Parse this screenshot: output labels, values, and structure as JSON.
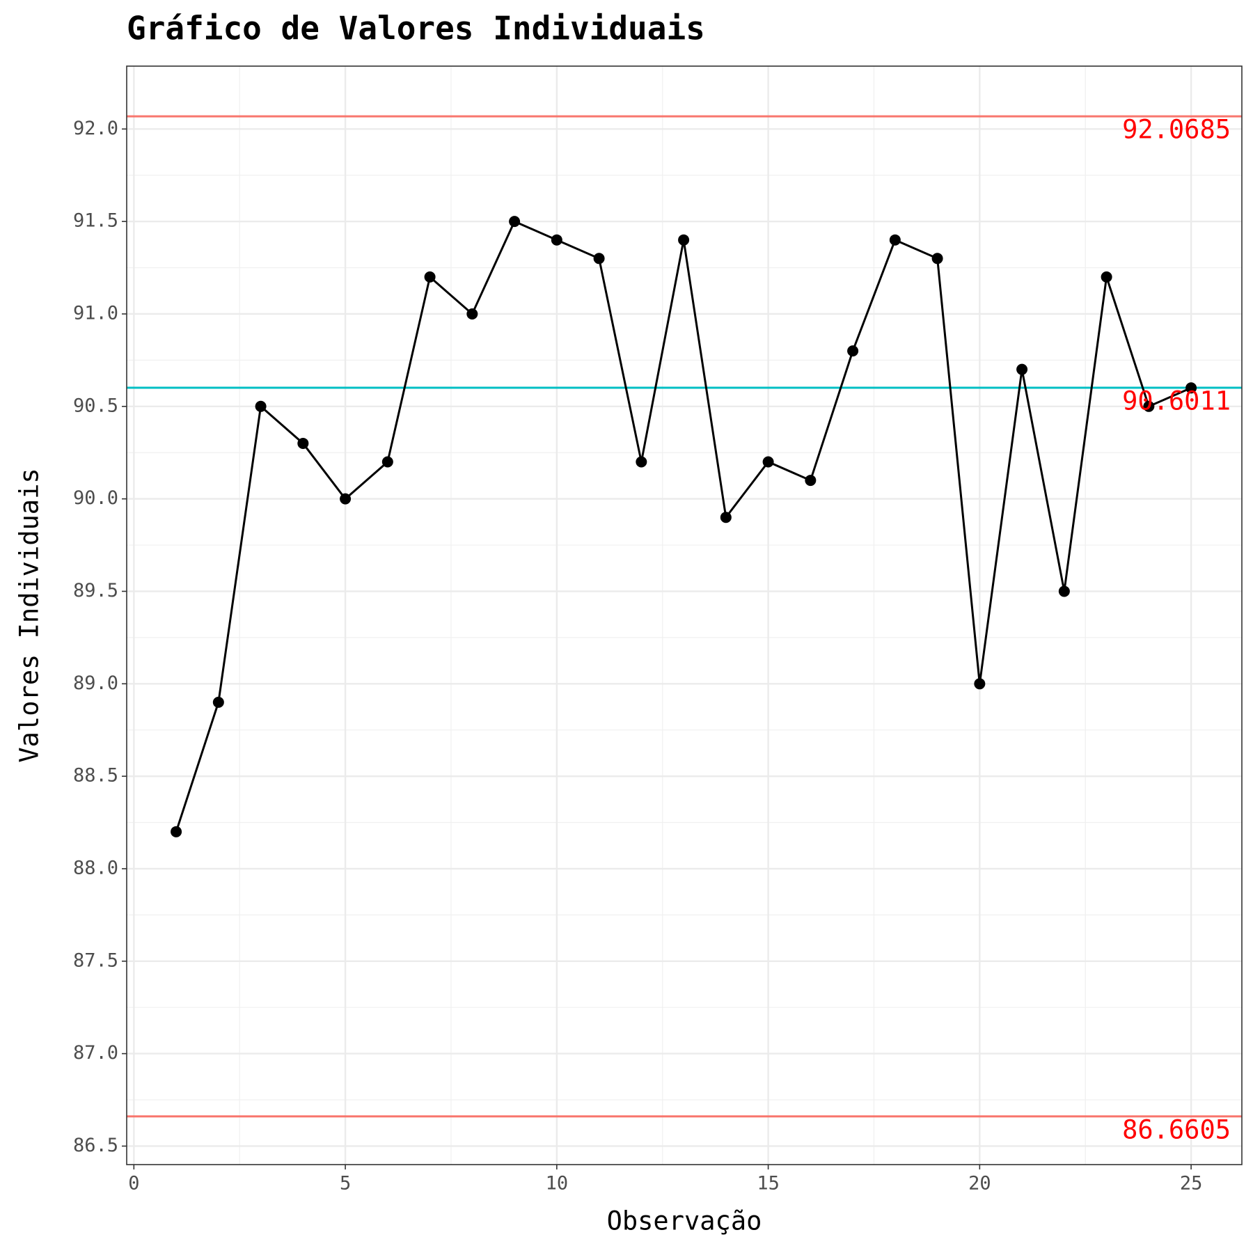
{
  "chart_data": {
    "type": "line",
    "title": "Gráfico de Valores Individuais",
    "x_label": "Observação",
    "y_label": "Valores Individuais",
    "x": [
      1,
      2,
      3,
      4,
      5,
      6,
      7,
      8,
      9,
      10,
      11,
      12,
      13,
      14,
      15,
      16,
      17,
      18,
      19,
      20,
      21,
      22,
      23,
      24,
      25
    ],
    "series": [
      {
        "color": "#000000",
        "values": [
          88.2,
          88.9,
          90.5,
          90.3,
          90.0,
          90.2,
          91.2,
          91.0,
          91.5,
          91.4,
          91.3,
          90.2,
          91.4,
          89.9,
          90.2,
          90.1,
          90.8,
          91.4,
          91.3,
          89.0,
          90.7,
          89.5,
          91.2,
          90.5,
          90.6
        ]
      }
    ],
    "reference_lines": [
      {
        "value": 92.0685,
        "color": "#f8766d"
      },
      {
        "value": 90.6011,
        "color": "#00bfc4"
      },
      {
        "value": 86.6605,
        "color": "#f8766d"
      }
    ],
    "reference_label_color": "#ff0000",
    "xlim": [
      -0.17,
      26.2
    ],
    "ylim": [
      86.4,
      92.34
    ],
    "xticks": [
      0,
      5,
      10,
      15,
      20,
      25
    ],
    "yticks": [
      86.5,
      {
        "value": 87,
        "label": "87.0"
      },
      87.5,
      {
        "value": 88,
        "label": "88.0"
      },
      88.5,
      {
        "value": 89,
        "label": "89.0"
      },
      89.5,
      {
        "value": 90,
        "label": "90.0"
      },
      90.5,
      {
        "value": 91,
        "label": "91.0"
      },
      91.5,
      {
        "value": 92,
        "label": "92.0"
      }
    ],
    "grid": true
  }
}
